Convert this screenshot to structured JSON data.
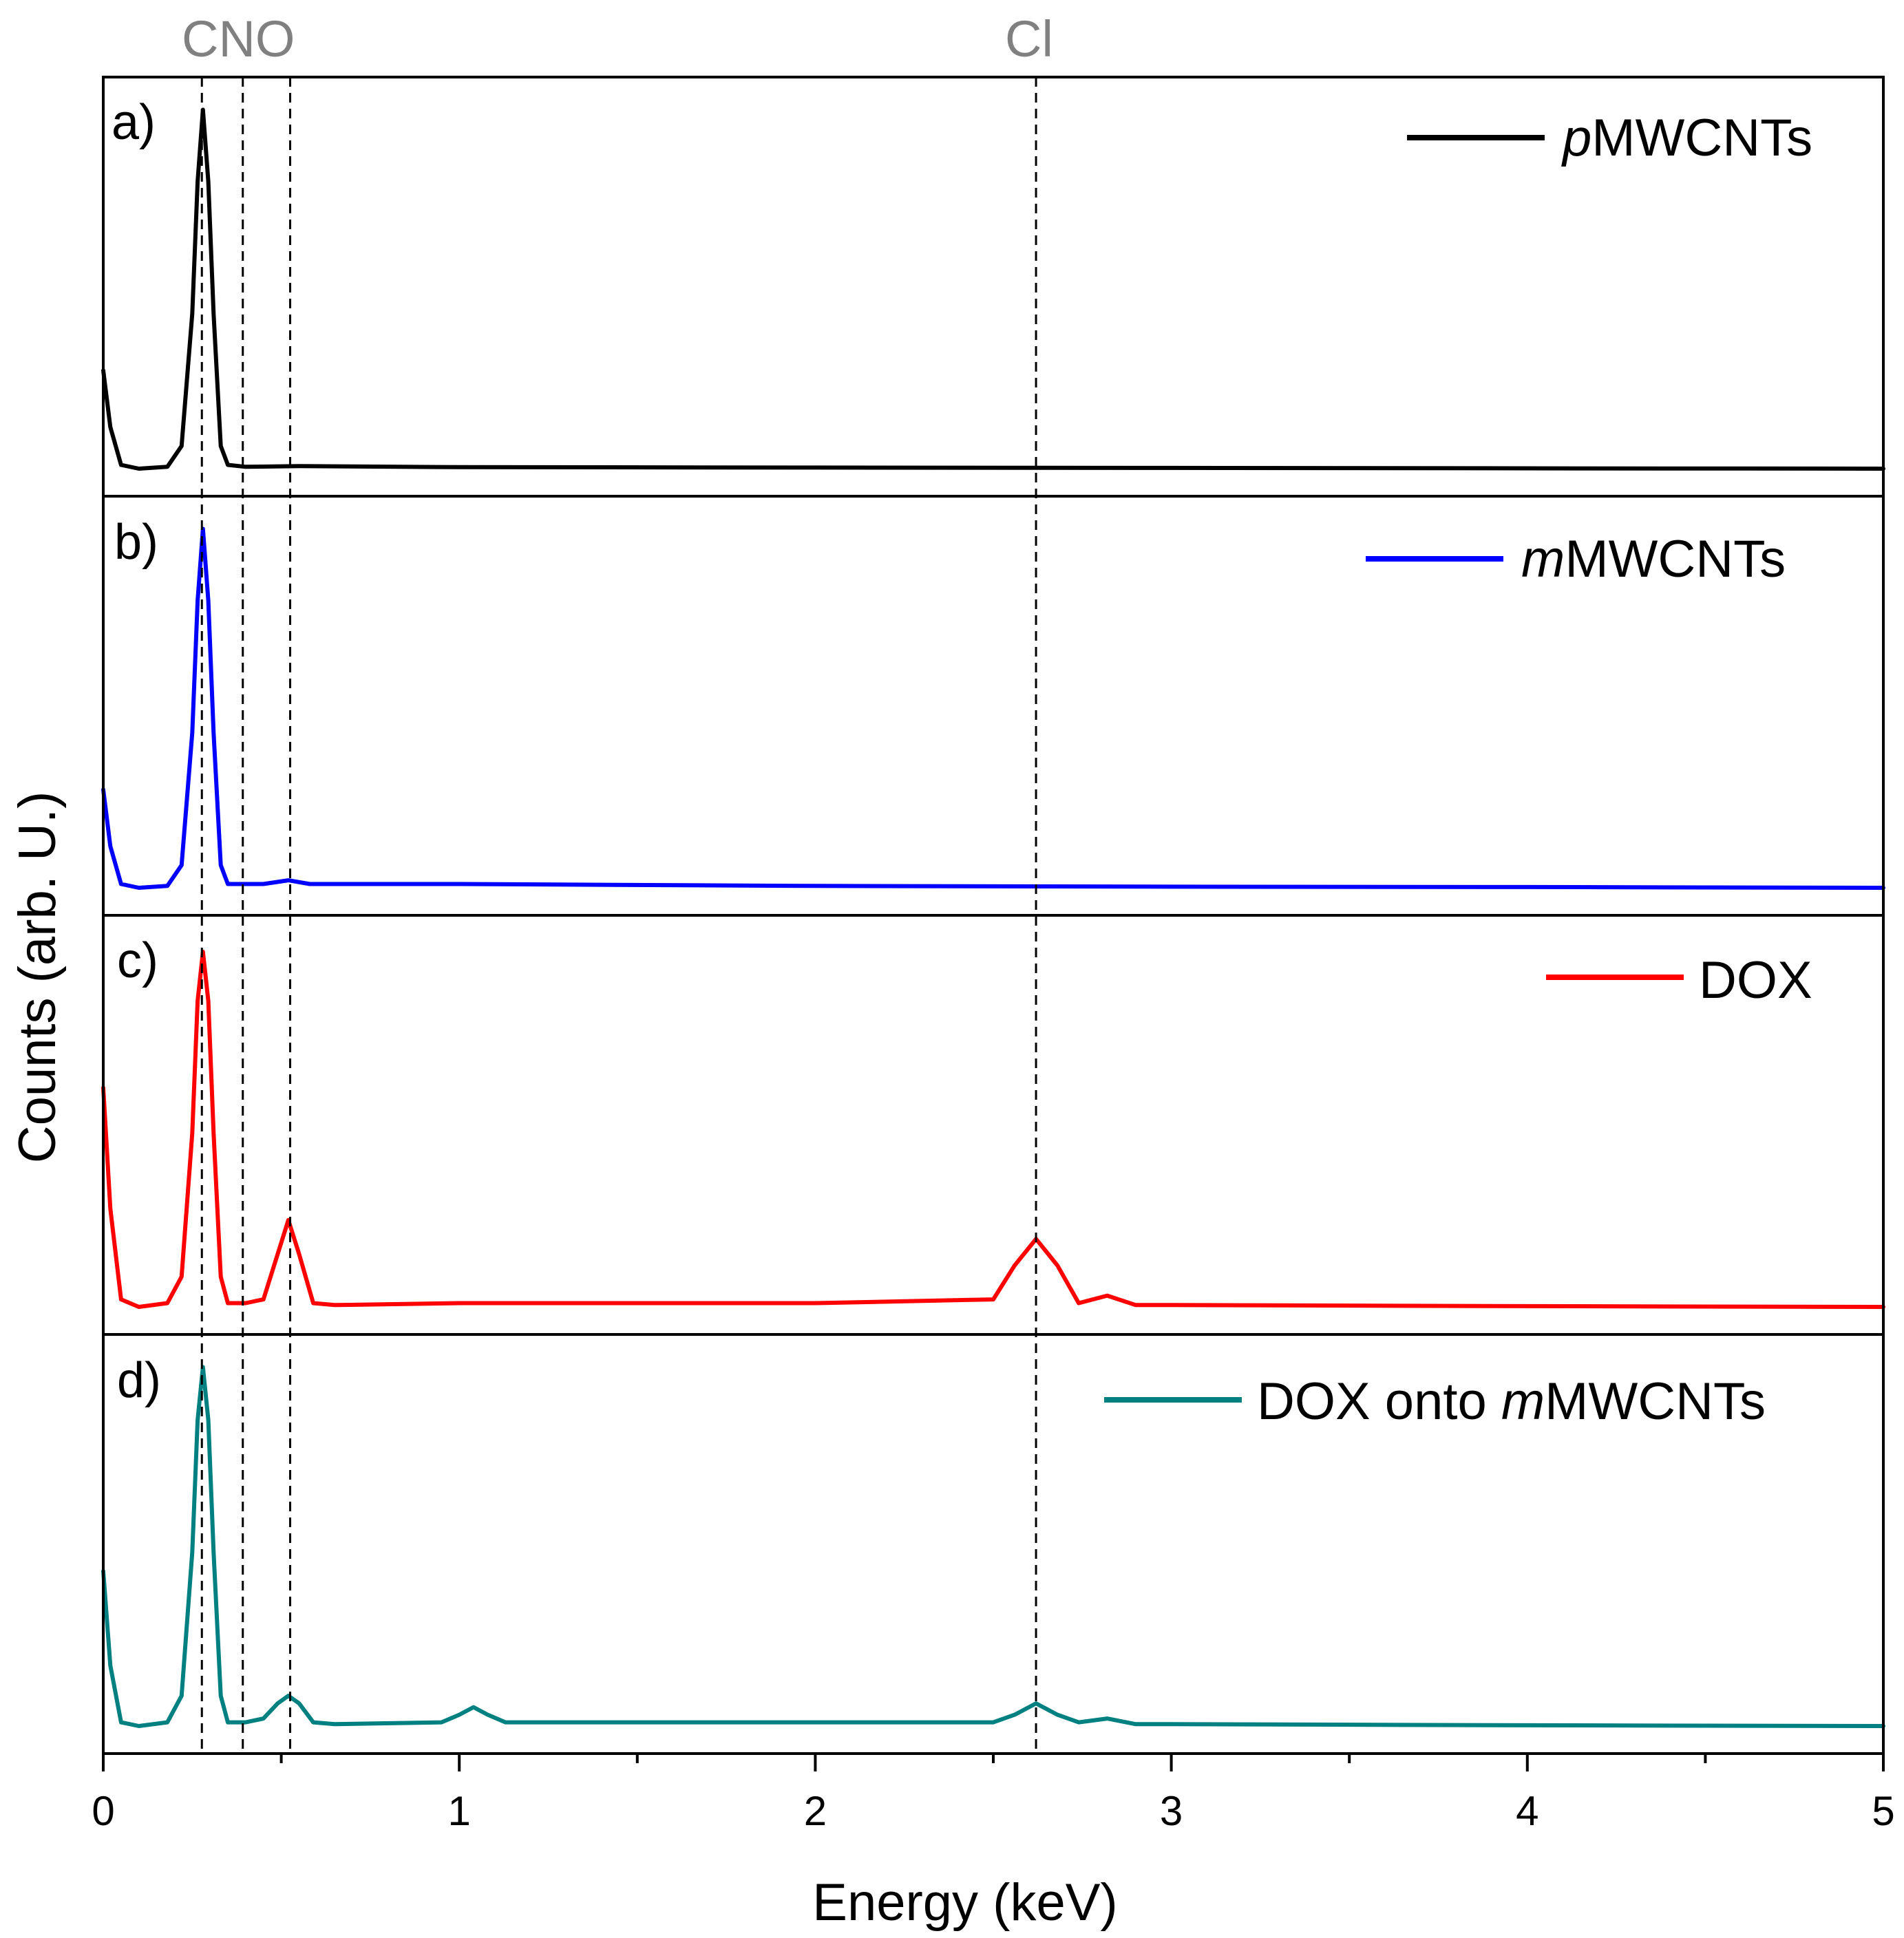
{
  "chart_data": {
    "type": "line",
    "xlabel": "Energy (keV)",
    "ylabel": "Counts (arb. U.)",
    "xlim": [
      0,
      5
    ],
    "ylim": [
      0,
      1
    ],
    "x_ticks": [
      "0",
      "1",
      "2",
      "3",
      "4",
      "5"
    ],
    "x_minor_ticks": [
      0.5,
      1.5,
      2.5,
      3.5,
      4.5
    ],
    "element_markers": [
      {
        "label": "C",
        "energy": 0.277
      },
      {
        "label": "N",
        "energy": 0.392
      },
      {
        "label": "O",
        "energy": 0.525
      },
      {
        "label": "Cl",
        "energy": 2.62
      }
    ],
    "element_label_text": "CNO",
    "panels": [
      {
        "label": "a)",
        "legend_italic": "p",
        "legend_rest": "MWCNTs",
        "color": "#000000",
        "baseline": 0.04,
        "x": [
          0,
          0.02,
          0.05,
          0.1,
          0.18,
          0.22,
          0.25,
          0.265,
          0.28,
          0.295,
          0.31,
          0.33,
          0.35,
          0.4,
          0.55,
          1,
          2,
          3,
          4,
          5
        ],
        "y": [
          0.3,
          0.15,
          0.05,
          0.04,
          0.045,
          0.1,
          0.45,
          0.8,
          0.99,
          0.8,
          0.45,
          0.1,
          0.05,
          0.045,
          0.047,
          0.044,
          0.043,
          0.042,
          0.041,
          0.04
        ]
      },
      {
        "label": "b)",
        "legend_italic": "m",
        "legend_rest": "MWCNTs",
        "color": "#0000ff",
        "baseline": 0.04,
        "x": [
          0,
          0.02,
          0.05,
          0.1,
          0.18,
          0.22,
          0.25,
          0.265,
          0.28,
          0.295,
          0.31,
          0.33,
          0.35,
          0.4,
          0.45,
          0.52,
          0.58,
          1,
          2,
          3,
          4,
          5
        ],
        "y": [
          0.3,
          0.15,
          0.05,
          0.04,
          0.045,
          0.1,
          0.45,
          0.8,
          0.99,
          0.8,
          0.45,
          0.1,
          0.05,
          0.05,
          0.05,
          0.06,
          0.05,
          0.05,
          0.045,
          0.043,
          0.042,
          0.04
        ]
      },
      {
        "label": "c)",
        "legend_italic": "",
        "legend_rest": "DOX",
        "color": "#ff0000",
        "baseline": 0.04,
        "x": [
          0,
          0.02,
          0.05,
          0.1,
          0.18,
          0.22,
          0.25,
          0.265,
          0.28,
          0.295,
          0.31,
          0.33,
          0.35,
          0.4,
          0.45,
          0.49,
          0.52,
          0.55,
          0.59,
          0.65,
          1,
          2,
          2.5,
          2.56,
          2.62,
          2.68,
          2.74,
          2.82,
          2.9,
          3,
          4,
          5
        ],
        "y": [
          0.62,
          0.3,
          0.06,
          0.04,
          0.05,
          0.12,
          0.5,
          0.85,
          0.98,
          0.85,
          0.5,
          0.12,
          0.05,
          0.05,
          0.06,
          0.18,
          0.27,
          0.18,
          0.05,
          0.045,
          0.05,
          0.05,
          0.06,
          0.15,
          0.22,
          0.15,
          0.05,
          0.07,
          0.045,
          0.045,
          0.042,
          0.04
        ]
      },
      {
        "label": "d)",
        "legend_italic": "m",
        "legend_rest": "MWCNTs",
        "legend_prefix": "DOX onto ",
        "color": "#008080",
        "baseline": 0.04,
        "x": [
          0,
          0.02,
          0.05,
          0.1,
          0.18,
          0.22,
          0.25,
          0.265,
          0.28,
          0.295,
          0.31,
          0.33,
          0.35,
          0.4,
          0.45,
          0.49,
          0.52,
          0.55,
          0.59,
          0.65,
          0.95,
          1.0,
          1.04,
          1.08,
          1.13,
          2,
          2.5,
          2.56,
          2.62,
          2.68,
          2.74,
          2.82,
          2.9,
          3,
          4,
          5
        ],
        "y": [
          0.45,
          0.2,
          0.05,
          0.04,
          0.05,
          0.12,
          0.5,
          0.85,
          0.99,
          0.85,
          0.5,
          0.12,
          0.05,
          0.05,
          0.06,
          0.1,
          0.12,
          0.1,
          0.05,
          0.045,
          0.05,
          0.07,
          0.09,
          0.07,
          0.05,
          0.05,
          0.05,
          0.07,
          0.1,
          0.07,
          0.05,
          0.06,
          0.045,
          0.045,
          0.042,
          0.04
        ]
      }
    ]
  }
}
